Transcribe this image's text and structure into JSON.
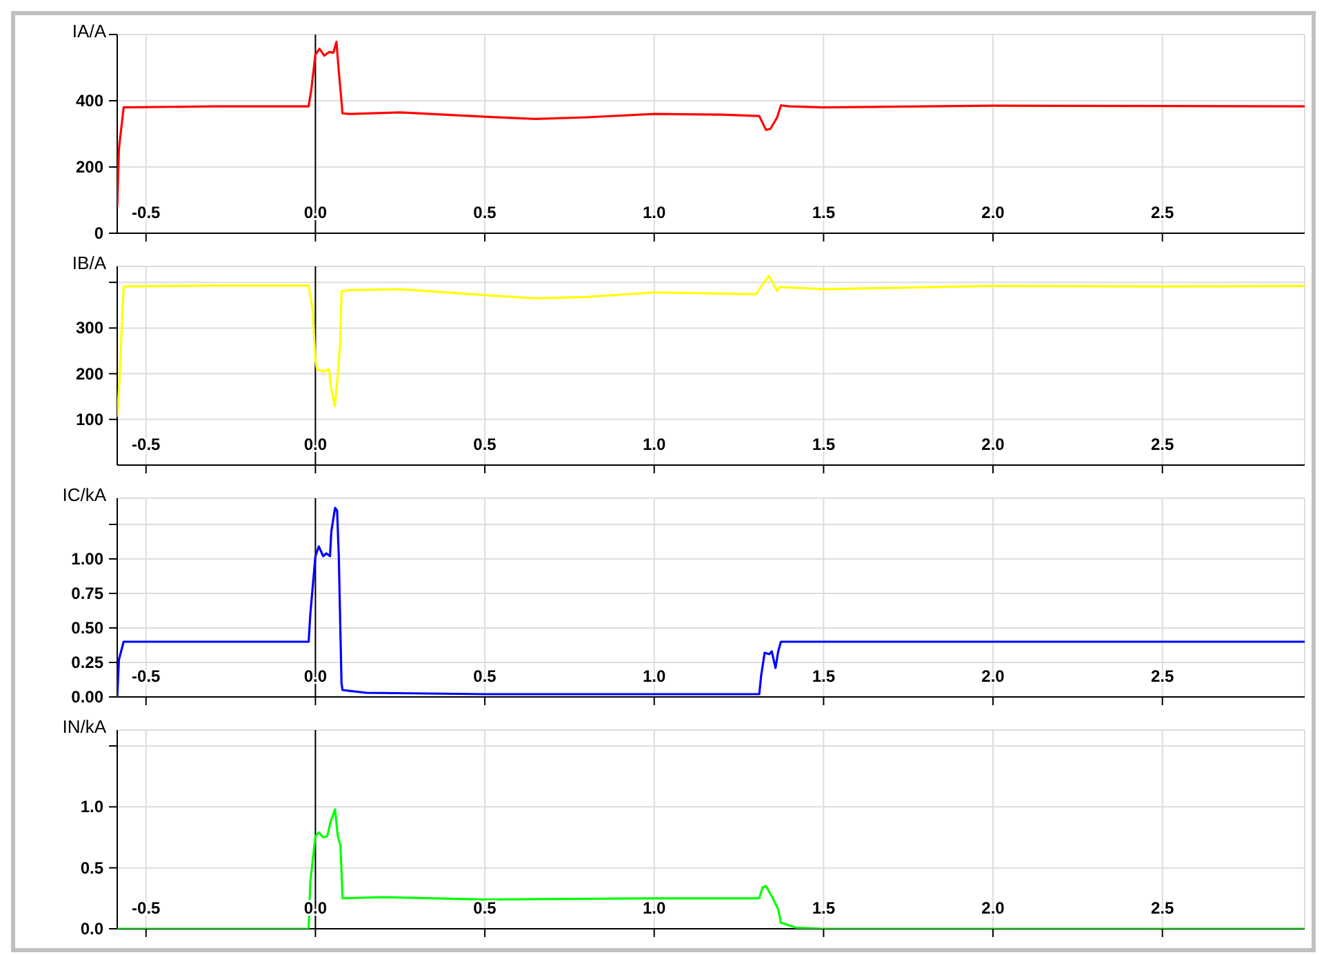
{
  "chart_data": [
    {
      "type": "line",
      "ylabel": "IA/A",
      "xlim": [
        -0.585,
        2.92
      ],
      "xticks": [
        -0.5,
        {
          "value": 0,
          "label": "0.0"
        },
        0.5,
        {
          "value": 1,
          "label": "1.0"
        },
        1.5,
        {
          "value": 2,
          "label": "2.0"
        },
        2.5
      ],
      "ylim": [
        0,
        600
      ],
      "yticks": [
        0,
        200,
        400,
        {
          "value": 600,
          "label": null
        }
      ],
      "grid": true,
      "ref_lines": [
        {
          "axis": "x",
          "value": 0,
          "color": "#000000"
        }
      ],
      "series": [
        {
          "color": "#ff0000",
          "x": [
            -0.585,
            -0.58,
            -0.566,
            -0.3,
            -0.02,
            -0.012,
            0,
            0.012,
            0.026,
            0.04,
            0.053,
            0.062,
            0.069,
            0.08,
            0.1,
            0.25,
            0.5,
            0.65,
            0.8,
            1.0,
            1.2,
            1.31,
            1.33,
            1.343,
            1.363,
            1.374,
            1.4,
            1.5,
            2.0,
            2.5,
            2.92
          ],
          "values": [
            80,
            255,
            380,
            383,
            383,
            435,
            539,
            557,
            536,
            547,
            545,
            578,
            490,
            362,
            360,
            365,
            352,
            345,
            350,
            360,
            358,
            354,
            312,
            315,
            350,
            386,
            383,
            380,
            385,
            384,
            383
          ]
        }
      ]
    },
    {
      "type": "line",
      "ylabel": "IB/A",
      "xlim": [
        -0.585,
        2.92
      ],
      "xticks": [
        -0.5,
        {
          "value": 0,
          "label": "0.0"
        },
        0.5,
        {
          "value": 1,
          "label": "1.0"
        },
        1.5,
        {
          "value": 2,
          "label": "2.0"
        },
        2.5
      ],
      "ylim": [
        0,
        435
      ],
      "yticks": [
        100,
        200,
        300,
        {
          "value": 400,
          "label": null
        }
      ],
      "grid": true,
      "ref_lines": [
        {
          "axis": "x",
          "value": 0,
          "color": "#000000"
        }
      ],
      "series": [
        {
          "color": "#ffff00",
          "x": [
            -0.585,
            -0.58,
            -0.566,
            -0.3,
            -0.02,
            -0.008,
            0,
            0.005,
            0.026,
            0.04,
            0.046,
            0.057,
            0.064,
            0.073,
            0.077,
            0.1,
            0.25,
            0.5,
            0.65,
            0.8,
            1.0,
            1.3,
            1.338,
            1.363,
            1.37,
            1.5,
            2.0,
            2.5,
            2.92
          ],
          "values": [
            106,
            165,
            391,
            393,
            393,
            337,
            229,
            209,
            205,
            210,
            171,
            129,
            180,
            268,
            380,
            383,
            385,
            372,
            365,
            368,
            378,
            374,
            414,
            381,
            390,
            385,
            392,
            391,
            392
          ]
        }
      ]
    },
    {
      "type": "line",
      "ylabel": "IC/kA",
      "xlim": [
        -0.585,
        2.92
      ],
      "xticks": [
        -0.5,
        {
          "value": 0,
          "label": "0.0"
        },
        0.5,
        {
          "value": 1,
          "label": "1.0"
        },
        1.5,
        {
          "value": 2,
          "label": "2.0"
        },
        2.5
      ],
      "ylim": [
        0,
        1.44
      ],
      "yticks": [
        {
          "value": 0,
          "label": "0.00"
        },
        0.25,
        {
          "value": 0.5,
          "label": "0.50"
        },
        0.75,
        {
          "value": 1,
          "label": "1.00"
        },
        {
          "value": 1.25,
          "label": null
        }
      ],
      "grid": true,
      "ref_lines": [
        {
          "axis": "x",
          "value": 0,
          "color": "#000000"
        }
      ],
      "series": [
        {
          "color": "#0000ff",
          "x": [
            -0.585,
            -0.58,
            -0.566,
            -0.3,
            -0.02,
            -0.015,
            0,
            0.01,
            0.023,
            0.032,
            0.043,
            0.047,
            0.058,
            0.064,
            0.069,
            0.077,
            0.08,
            0.15,
            0.5,
            1.0,
            1.31,
            1.316,
            1.326,
            1.34,
            1.347,
            1.358,
            1.366,
            1.374,
            1.5,
            2.0,
            2.5,
            2.92
          ],
          "values": [
            0,
            0.27,
            0.4,
            0.4,
            0.4,
            0.6,
            1.02,
            1.09,
            1.02,
            1.04,
            1.02,
            1.2,
            1.37,
            1.35,
            1.02,
            0.1,
            0.05,
            0.03,
            0.02,
            0.02,
            0.02,
            0.16,
            0.32,
            0.31,
            0.33,
            0.21,
            0.33,
            0.4,
            0.4,
            0.4,
            0.4,
            0.4
          ]
        }
      ]
    },
    {
      "type": "line",
      "ylabel": "IN/kA",
      "xlim": [
        -0.585,
        2.92
      ],
      "xticks": [
        -0.5,
        {
          "value": 0,
          "label": "0.0"
        },
        0.5,
        {
          "value": 1,
          "label": "1.0"
        },
        1.5,
        {
          "value": 2,
          "label": "2.0"
        },
        2.5
      ],
      "ylim": [
        0,
        1.63
      ],
      "yticks": [
        {
          "value": 0,
          "label": "0.0"
        },
        0.5,
        {
          "value": 1,
          "label": "1.0"
        },
        {
          "value": 1.5,
          "label": null
        }
      ],
      "grid": true,
      "ref_lines": [
        {
          "axis": "x",
          "value": 0,
          "color": "#000000"
        }
      ],
      "series": [
        {
          "color": "#00ff00",
          "x": [
            -0.585,
            -0.3,
            -0.02,
            -0.015,
            0,
            0.01,
            0.023,
            0.035,
            0.045,
            0.058,
            0.066,
            0.074,
            0.08,
            0.2,
            0.5,
            1.0,
            1.31,
            1.32,
            1.33,
            1.35,
            1.366,
            1.374,
            1.418,
            1.5,
            2.0,
            2.5,
            2.92
          ],
          "values": [
            0,
            0,
            0,
            0.39,
            0.76,
            0.79,
            0.75,
            0.76,
            0.88,
            0.98,
            0.76,
            0.68,
            0.25,
            0.26,
            0.24,
            0.25,
            0.25,
            0.34,
            0.35,
            0.25,
            0.16,
            0.05,
            0.01,
            0,
            0,
            0,
            0
          ]
        }
      ]
    }
  ]
}
